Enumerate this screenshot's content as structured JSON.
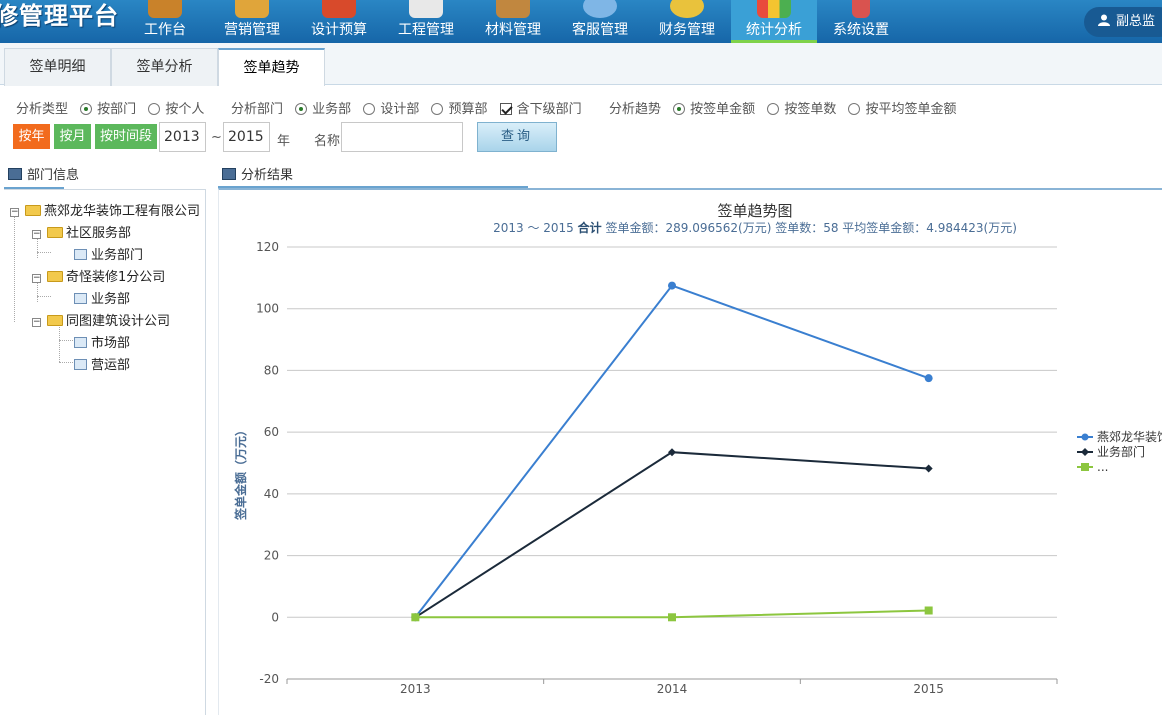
{
  "app": {
    "title": "修管理平台",
    "user": "副总监"
  },
  "nav": [
    {
      "label": "工作台"
    },
    {
      "label": "营销管理"
    },
    {
      "label": "设计预算"
    },
    {
      "label": "工程管理"
    },
    {
      "label": "材料管理"
    },
    {
      "label": "客服管理"
    },
    {
      "label": "财务管理"
    },
    {
      "label": "统计分析",
      "active": true
    },
    {
      "label": "系统设置"
    }
  ],
  "tabs": [
    {
      "label": "签单明细"
    },
    {
      "label": "签单分析"
    },
    {
      "label": "签单趋势",
      "active": true
    }
  ],
  "filters": {
    "type_label": "分析类型",
    "type_options": [
      {
        "label": "按部门",
        "checked": true
      },
      {
        "label": "按个人",
        "checked": false
      }
    ],
    "dept_label": "分析部门",
    "dept_options": [
      {
        "label": "业务部",
        "checked": true
      },
      {
        "label": "设计部",
        "checked": false
      },
      {
        "label": "预算部",
        "checked": false
      }
    ],
    "include_sub_label": "含下级部门",
    "include_sub_checked": true,
    "trend_label": "分析趋势",
    "trend_options": [
      {
        "label": "按签单金额",
        "checked": true
      },
      {
        "label": "按签单数",
        "checked": false
      },
      {
        "label": "按平均签单金额",
        "checked": false
      }
    ],
    "by_year": "按年",
    "by_month": "按月",
    "by_period": "按时间段",
    "start_year": "2013",
    "range_sep": "~",
    "end_year": "2015",
    "year_unit": "年",
    "name_label": "名称",
    "name_value": "",
    "query_button": "查询",
    "colors": {
      "by_year": "#f26b1d",
      "by_month": "#5cb85c",
      "by_period": "#5cb85c"
    }
  },
  "left_panel": {
    "title": "部门信息",
    "tree": {
      "root": "燕郊龙华装饰工程有限公司",
      "children": [
        {
          "label": "社区服务部",
          "children": [
            "业务部门"
          ]
        },
        {
          "label": "奇怪装修1分公司",
          "children": [
            "业务部"
          ]
        },
        {
          "label": "同图建筑设计公司",
          "children": [
            "市场部",
            "营运部"
          ]
        }
      ]
    }
  },
  "right_panel": {
    "title": "分析结果"
  },
  "chart_data": {
    "type": "line",
    "title": "签单趋势图",
    "subtitle_range": "2013 ～ 2015",
    "subtitle_total_label": "合计",
    "subtitle_stats": "签单金额：289.096562(万元) 签单数：58 平均签单金额：4.984423(万元)",
    "ylabel": "签单金额（万元）",
    "xlabel": "",
    "categories": [
      "2013",
      "2014",
      "2015"
    ],
    "ylim": [
      -20,
      120
    ],
    "yticks": [
      "-20",
      "0",
      "20",
      "40",
      "60",
      "80",
      "100",
      "120"
    ],
    "grid": true,
    "legend_position": "right",
    "series": [
      {
        "name": "燕郊龙华装饰",
        "values": [
          0,
          107.5,
          77.5
        ],
        "color": "#3a7fd0",
        "marker": "circle"
      },
      {
        "name": "业务部门",
        "values": [
          0,
          53.5,
          48.2
        ],
        "color": "#1b2a3a",
        "marker": "diamond"
      },
      {
        "name": "...",
        "values": [
          0,
          0,
          2.2
        ],
        "color": "#8cc63f",
        "marker": "square"
      }
    ]
  }
}
